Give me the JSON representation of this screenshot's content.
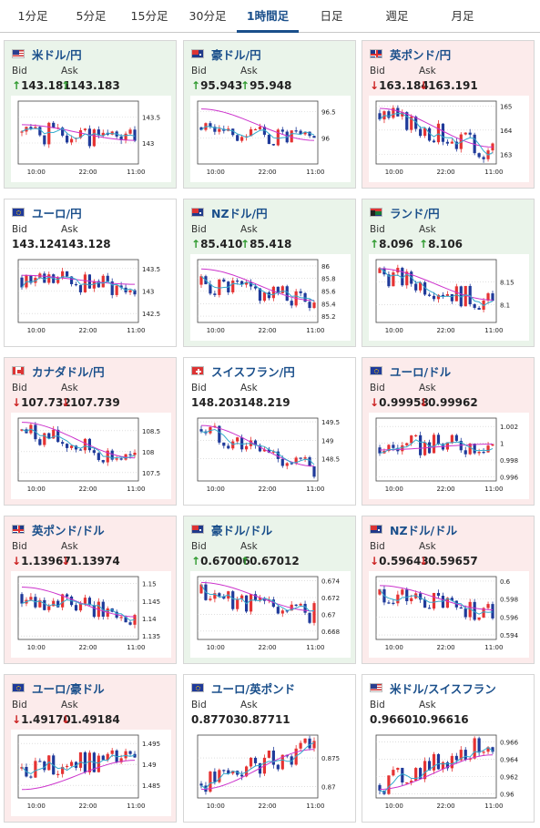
{
  "tabs": [
    {
      "label": "1分足"
    },
    {
      "label": "5分足"
    },
    {
      "label": "15分足"
    },
    {
      "label": "30分足"
    },
    {
      "label": "1時間足",
      "active": true
    },
    {
      "label": "日足"
    },
    {
      "label": "週足"
    },
    {
      "label": "月足"
    }
  ],
  "colors": {
    "up_green": "#2f9a2f",
    "down_red": "#cc2222",
    "ma_magenta": "#cc33cc",
    "ma_cyan": "#33aacc",
    "candle_up": "#e53333",
    "candle_down": "#1f3a9a"
  },
  "cards": [
    {
      "name": "米ドル/円",
      "flag": "us",
      "bg": "up",
      "bid_label": "Bid",
      "ask_label": "Ask",
      "bid": "143.181",
      "ask": "143.183",
      "dir": "up",
      "chart": {
        "yticks": [
          "143.5",
          "143"
        ],
        "ymin": 142.6,
        "ymax": 143.8,
        "xticks": [
          "10:00",
          "22:00",
          "11:00"
        ],
        "seed": 1,
        "start": 143.2,
        "end": 143.1,
        "ma_start": 143.35,
        "ma_end": 143.05
      }
    },
    {
      "name": "豪ドル/円",
      "flag": "au",
      "bg": "up",
      "bid_label": "Bid",
      "ask_label": "Ask",
      "bid": "95.943",
      "ask": "95.948",
      "dir": "up",
      "chart": {
        "yticks": [
          "96.5",
          "96"
        ],
        "ymin": 95.5,
        "ymax": 96.7,
        "xticks": [
          "10:00",
          "22:00",
          "11:00"
        ],
        "seed": 2,
        "start": 96.2,
        "end": 95.95,
        "ma_start": 96.55,
        "ma_end": 95.95
      }
    },
    {
      "name": "英ポンド/円",
      "flag": "gb",
      "bg": "down",
      "bid_label": "Bid",
      "ask_label": "Ask",
      "bid": "163.184",
      "ask": "163.191",
      "dir": "down",
      "chart": {
        "yticks": [
          "165",
          "164",
          "163"
        ],
        "ymin": 162.6,
        "ymax": 165.2,
        "xticks": [
          "10:00",
          "22:00",
          "11:00"
        ],
        "seed": 3,
        "start": 164.7,
        "end": 163.1,
        "ma_start": 164.9,
        "ma_end": 163.3
      }
    },
    {
      "name": "ユーロ/円",
      "flag": "eu",
      "bg": "flat",
      "bid_label": "Bid",
      "ask_label": "Ask",
      "bid": "143.124",
      "ask": "143.128",
      "dir": "none",
      "chart": {
        "yticks": [
          "143.5",
          "143",
          "142.5"
        ],
        "ymin": 142.3,
        "ymax": 143.7,
        "xticks": [
          "10:00",
          "22:00",
          "11:00"
        ],
        "seed": 4,
        "start": 143.3,
        "end": 143.1,
        "ma_start": 143.35,
        "ma_end": 143.15
      }
    },
    {
      "name": "NZドル/円",
      "flag": "nz",
      "bg": "up",
      "bid_label": "Bid",
      "ask_label": "Ask",
      "bid": "85.410",
      "ask": "85.418",
      "dir": "up",
      "chart": {
        "yticks": [
          "86",
          "85.8",
          "85.6",
          "85.4",
          "85.2"
        ],
        "ymin": 85.1,
        "ymax": 86.1,
        "xticks": [
          "10:00",
          "22:00",
          "11:00"
        ],
        "seed": 5,
        "start": 85.7,
        "end": 85.45,
        "ma_start": 85.95,
        "ma_end": 85.45
      }
    },
    {
      "name": "ランド/円",
      "flag": "za",
      "bg": "up",
      "bid_label": "Bid",
      "ask_label": "Ask",
      "bid": "8.096",
      "ask": "8.106",
      "dir": "up",
      "chart": {
        "yticks": [
          "8.15",
          "8.1"
        ],
        "ymin": 8.06,
        "ymax": 8.2,
        "xticks": [
          "10:00",
          "22:00",
          "11:00"
        ],
        "seed": 6,
        "start": 8.17,
        "end": 8.1,
        "ma_start": 8.18,
        "ma_end": 8.11
      }
    },
    {
      "name": "カナダドル/円",
      "flag": "ca",
      "bg": "down",
      "bid_label": "Bid",
      "ask_label": "Ask",
      "bid": "107.732",
      "ask": "107.739",
      "dir": "down",
      "chart": {
        "yticks": [
          "108.5",
          "108",
          "107.5"
        ],
        "ymin": 107.3,
        "ymax": 108.8,
        "xticks": [
          "10:00",
          "22:00",
          "11:00"
        ],
        "seed": 7,
        "start": 108.5,
        "end": 107.75,
        "ma_start": 108.7,
        "ma_end": 107.85
      }
    },
    {
      "name": "スイスフラン/円",
      "flag": "ch",
      "bg": "flat",
      "bid_label": "Bid",
      "ask_label": "Ask",
      "bid": "148.203",
      "ask": "148.219",
      "dir": "none",
      "chart": {
        "yticks": [
          "149.5",
          "149",
          "148.5"
        ],
        "ymin": 147.9,
        "ymax": 149.6,
        "xticks": [
          "10:00",
          "22:00",
          "11:00"
        ],
        "seed": 8,
        "start": 149.3,
        "end": 148.2,
        "ma_start": 149.4,
        "ma_end": 148.3
      }
    },
    {
      "name": "ユーロ/ドル",
      "flag": "eu",
      "bg": "down",
      "bid_label": "Bid",
      "ask_label": "Ask",
      "bid": "0.99958",
      "ask": "0.99962",
      "dir": "down",
      "chart": {
        "yticks": [
          "1.002",
          "1",
          "0.998",
          "0.996"
        ],
        "ymin": 0.9955,
        "ymax": 1.003,
        "xticks": [
          "10:00",
          "22:00",
          "11:00"
        ],
        "seed": 9,
        "start": 0.9995,
        "end": 1.0,
        "ma_start": 0.9992,
        "ma_end": 0.9999
      }
    },
    {
      "name": "英ポンド/ドル",
      "flag": "gb",
      "bg": "down",
      "bid_label": "Bid",
      "ask_label": "Ask",
      "bid": "1.13967",
      "ask": "1.13974",
      "dir": "down",
      "chart": {
        "yticks": [
          "1.15",
          "1.145",
          "1.14",
          "1.135"
        ],
        "ymin": 1.134,
        "ymax": 1.152,
        "xticks": [
          "10:00",
          "22:00",
          "11:00"
        ],
        "seed": 10,
        "start": 1.147,
        "end": 1.1397,
        "ma_start": 1.149,
        "ma_end": 1.1405
      }
    },
    {
      "name": "豪ドル/ドル",
      "flag": "au",
      "bg": "up",
      "bid_label": "Bid",
      "ask_label": "Ask",
      "bid": "0.67006",
      "ask": "0.67012",
      "dir": "up",
      "chart": {
        "yticks": [
          "0.674",
          "0.672",
          "0.67",
          "0.668"
        ],
        "ymin": 0.667,
        "ymax": 0.6745,
        "xticks": [
          "10:00",
          "22:00",
          "11:00"
        ],
        "seed": 11,
        "start": 0.6725,
        "end": 0.6701,
        "ma_start": 0.6738,
        "ma_end": 0.6704
      }
    },
    {
      "name": "NZドル/ドル",
      "flag": "nz",
      "bg": "down",
      "bid_label": "Bid",
      "ask_label": "Ask",
      "bid": "0.59643",
      "ask": "0.59657",
      "dir": "down",
      "chart": {
        "yticks": [
          "0.6",
          "0.598",
          "0.596",
          "0.594"
        ],
        "ymin": 0.5935,
        "ymax": 0.6005,
        "xticks": [
          "10:00",
          "22:00",
          "11:00"
        ],
        "seed": 12,
        "start": 0.5985,
        "end": 0.5965,
        "ma_start": 0.5995,
        "ma_end": 0.5968
      }
    },
    {
      "name": "ユーロ/豪ドル",
      "flag": "eu",
      "bg": "down",
      "bid_label": "Bid",
      "ask_label": "Ask",
      "bid": "1.49170",
      "ask": "1.49184",
      "dir": "down",
      "chart": {
        "yticks": [
          "1.495",
          "1.49",
          "1.485"
        ],
        "ymin": 1.482,
        "ymax": 1.497,
        "xticks": [
          "10:00",
          "22:00",
          "11:00"
        ],
        "seed": 13,
        "start": 1.489,
        "end": 1.4917,
        "ma_start": 1.484,
        "ma_end": 1.491
      }
    },
    {
      "name": "ユーロ/英ポンド",
      "flag": "eu",
      "bg": "flat",
      "bid_label": "Bid",
      "ask_label": "Ask",
      "bid": "0.87703",
      "ask": "0.87711",
      "dir": "none",
      "chart": {
        "yticks": [
          "0.875",
          "0.87"
        ],
        "ymin": 0.868,
        "ymax": 0.879,
        "xticks": [
          "10:00",
          "22:00",
          "11:00"
        ],
        "seed": 14,
        "start": 0.8705,
        "end": 0.877,
        "ma_start": 0.8695,
        "ma_end": 0.8765
      }
    },
    {
      "name": "米ドル/スイスフラン",
      "flag": "us",
      "bg": "flat",
      "bid_label": "Bid",
      "ask_label": "Ask",
      "bid": "0.96601",
      "ask": "0.96616",
      "dir": "none",
      "chart": {
        "yticks": [
          "0.966",
          "0.964",
          "0.962",
          "0.96"
        ],
        "ymin": 0.9595,
        "ymax": 0.9668,
        "xticks": [
          "10:00",
          "22:00",
          "11:00"
        ],
        "seed": 15,
        "start": 0.961,
        "end": 0.9661,
        "ma_start": 0.9605,
        "ma_end": 0.9645
      }
    }
  ]
}
